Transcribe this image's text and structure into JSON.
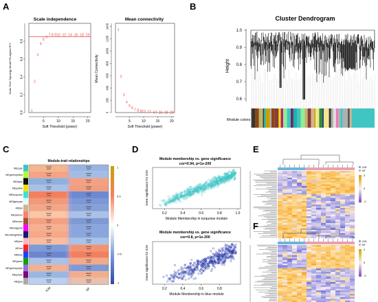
{
  "panels": {
    "A": "A",
    "B": "B",
    "C": "C",
    "D": "D",
    "E": "E",
    "F": "F"
  },
  "panelA": {
    "left": {
      "title": "Scale independence",
      "xlabel": "Soft Threshold (power)",
      "ylabel": "Scale Free Topology Model Fit,signed R^2",
      "xticks": [
        "5",
        "10",
        "15",
        "20"
      ],
      "yticks": [
        "0.0",
        "0.2",
        "0.4",
        "0.6",
        "0.8"
      ]
    },
    "right": {
      "title": "Mean connectivity",
      "xlabel": "Soft Threshold (power)",
      "ylabel": "Mean Connectivity",
      "xticks": [
        "5",
        "10",
        "15",
        "20"
      ],
      "yticks": [
        "0",
        "200",
        "400",
        "600",
        "800",
        "1000",
        "1200",
        "1400"
      ]
    }
  },
  "panelB": {
    "title": "Cluster Dendrogram",
    "ylabel": "Height",
    "yticks": [
      "1.0",
      "0.9",
      "0.8",
      "0.7",
      "0.6"
    ],
    "module_label": "Module colors"
  },
  "panelC": {
    "title": "Module-trait relationships",
    "columns": [
      "ICM",
      "NF"
    ],
    "modules": [
      "MEcyan",
      "MEgreenyellow",
      "MEblack",
      "MEyellow",
      "MEturquoise",
      "MElightcyan",
      "MEtan",
      "MEsalmon",
      "MEbrown",
      "MEmagenta",
      "MEmidnightblue",
      "MEpink",
      "MEred",
      "MEblue",
      "MEgreen",
      "MEgreenpurple",
      "MEpurple",
      "MEgrey"
    ],
    "legend_ticks": [
      "1",
      "0.5",
      "0",
      "-0.5",
      "-1"
    ]
  },
  "panelD": {
    "top": {
      "title": "Module membership vs. gene significance",
      "subtitle": "cor=0.94, p=1e-200",
      "xlabel": "Module Membership in turquoise module",
      "ylabel": "Gene significance for ICM",
      "xticks": [
        "0.2",
        "0.4",
        "0.6",
        "0.8",
        "1.0"
      ]
    },
    "bottom": {
      "title": "Module membership vs. gene significance",
      "subtitle": "cor=0.8, p=1e-200",
      "xlabel": "Module Membership in blue module",
      "ylabel": "Gene significance for ICM",
      "xticks": [
        "0.2",
        "0.4",
        "0.6",
        "0.8"
      ]
    }
  },
  "panelE": {
    "legend_ticks": [
      "2",
      "0",
      "-2"
    ],
    "groups": [
      "ICM",
      "NF"
    ]
  },
  "panelF": {
    "legend_ticks": [
      "2",
      "0",
      "-2"
    ],
    "groups": [
      "ICM",
      "NF"
    ]
  },
  "chart_data": [
    {
      "type": "scatter",
      "title": "Scale independence",
      "xlabel": "Soft Threshold (power)",
      "ylabel": "Scale Free Topology Model Fit,signed R^2",
      "xlim": [
        0,
        21
      ],
      "ylim": [
        0,
        1.0
      ],
      "reference_line": 0.85,
      "points": [
        [
          1,
          0.02
        ],
        [
          2,
          0.35
        ],
        [
          3,
          0.65
        ],
        [
          4,
          0.77
        ],
        [
          5,
          0.82
        ],
        [
          6,
          0.85
        ],
        [
          7,
          0.87
        ],
        [
          8,
          0.87
        ],
        [
          9,
          0.87
        ],
        [
          10,
          0.87
        ],
        [
          12,
          0.87
        ],
        [
          14,
          0.87
        ],
        [
          16,
          0.87
        ],
        [
          18,
          0.87
        ],
        [
          20,
          0.87
        ]
      ]
    },
    {
      "type": "scatter",
      "title": "Mean connectivity",
      "xlabel": "Soft Threshold (power)",
      "ylabel": "Mean Connectivity",
      "xlim": [
        0,
        21
      ],
      "ylim": [
        0,
        1450
      ],
      "points": [
        [
          1,
          1350
        ],
        [
          2,
          590
        ],
        [
          3,
          290
        ],
        [
          4,
          170
        ],
        [
          5,
          110
        ],
        [
          6,
          75
        ],
        [
          7,
          50
        ],
        [
          8,
          35
        ],
        [
          9,
          25
        ],
        [
          10,
          18
        ],
        [
          12,
          12
        ],
        [
          14,
          8
        ],
        [
          16,
          5
        ],
        [
          18,
          3
        ],
        [
          20,
          2
        ]
      ]
    }
  ],
  "colors": {
    "accent_red": "#ee4444",
    "turquoise": "#40c4c4",
    "blue": "#2435a8",
    "heat_high": "#f06a4a",
    "heat_low": "#5b7ac8"
  }
}
